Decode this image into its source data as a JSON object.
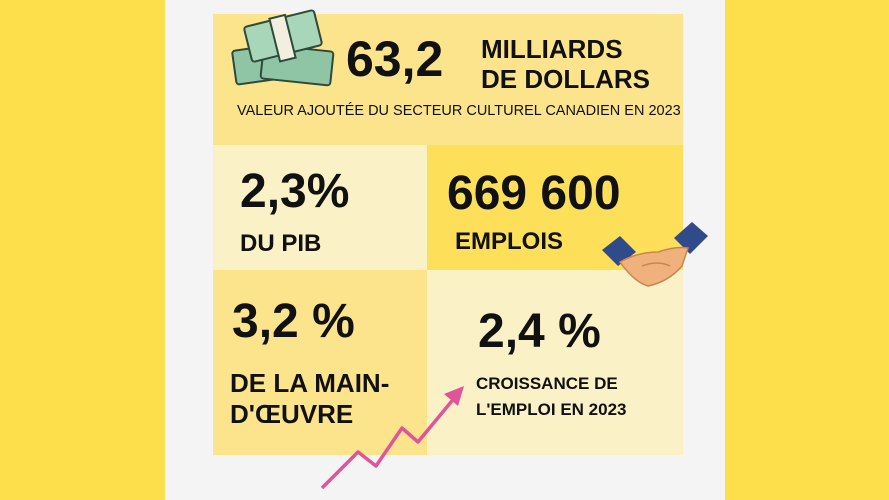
{
  "header": {
    "amount": "63,2",
    "unit_line1": "MILLIARDS",
    "unit_line2": "DE DOLLARS",
    "caption": "VALEUR AJOUTÉE DU SECTEUR CULTUREL CANADIEN EN 2023"
  },
  "tiles": [
    {
      "figure": "2,3%",
      "lines": [
        "DU PIB"
      ]
    },
    {
      "figure": "669 600",
      "lines": [
        "EMPLOIS"
      ]
    },
    {
      "figure": "3,2 %",
      "lines": [
        "DE LA MAIN-",
        "D'ŒUVRE"
      ]
    },
    {
      "figure": "2,4 %",
      "lines": [
        "CROISSANCE DE",
        "L'EMPLOI EN 2023"
      ]
    }
  ]
}
